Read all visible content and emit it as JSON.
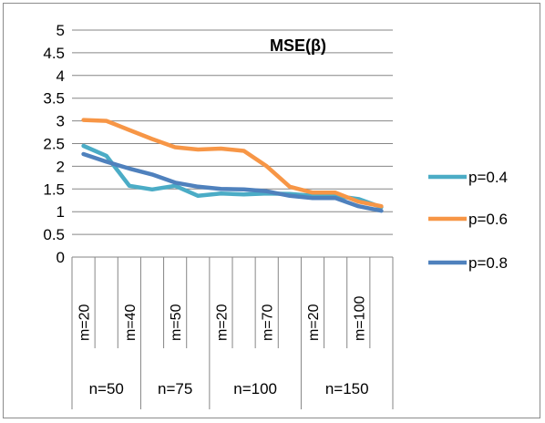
{
  "chart_data": {
    "type": "line",
    "title": "MSE(β)",
    "xlabel": "",
    "ylabel": "",
    "ylim": [
      0,
      5
    ],
    "yticks": [
      "0",
      "0.5",
      "1",
      "1.5",
      "2",
      "2.5",
      "3",
      "3.5",
      "4",
      "4.5",
      "5"
    ],
    "categories": [
      "m=20",
      "",
      "m=40",
      "",
      "m=50",
      "",
      "m=20",
      "",
      "m=70",
      "",
      "m=20",
      "",
      "m=100",
      ""
    ],
    "groups": [
      {
        "label": "n=50",
        "size": 3
      },
      {
        "label": "n=75",
        "size": 3
      },
      {
        "label": "n=100",
        "size": 4
      },
      {
        "label": "n=150",
        "size": 4
      }
    ],
    "grid": true,
    "legend": "right",
    "series": [
      {
        "name": "p=0.4",
        "color": "#4bacc6",
        "values": [
          2.45,
          2.23,
          1.57,
          1.49,
          1.57,
          1.35,
          1.4,
          1.38,
          1.4,
          1.39,
          1.35,
          1.35,
          1.28,
          1.1
        ]
      },
      {
        "name": "p=0.6",
        "color": "#f79646",
        "values": [
          3.02,
          3.0,
          2.8,
          2.6,
          2.42,
          2.37,
          2.39,
          2.34,
          2.0,
          1.55,
          1.42,
          1.42,
          1.22,
          1.12
        ]
      },
      {
        "name": "p=0.8",
        "color": "#4f81bd",
        "values": [
          2.27,
          2.1,
          1.95,
          1.82,
          1.64,
          1.55,
          1.5,
          1.49,
          1.45,
          1.35,
          1.3,
          1.3,
          1.12,
          1.02
        ]
      }
    ]
  }
}
